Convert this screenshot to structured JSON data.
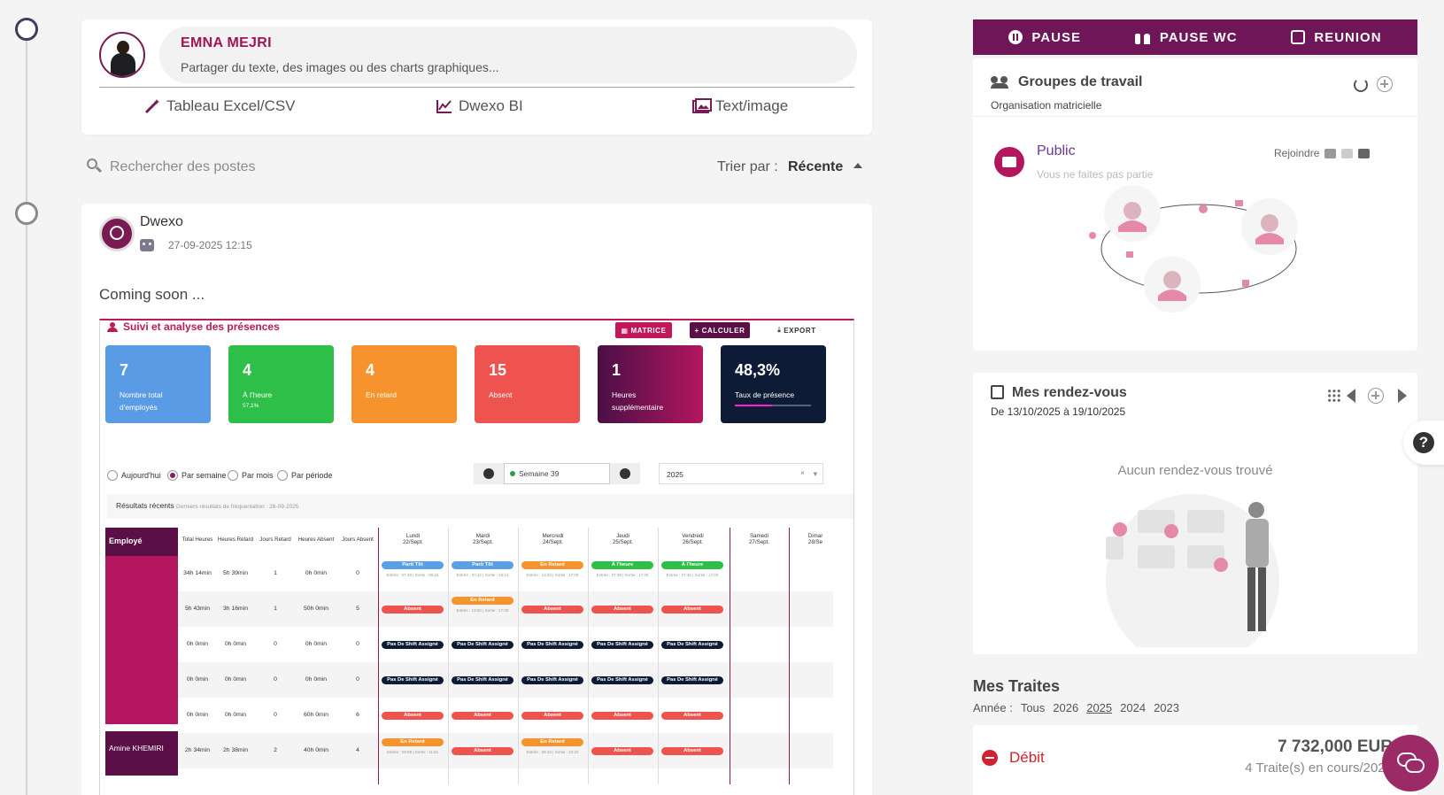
{
  "composer": {
    "user_name": "EMNA MEJRI",
    "prompt": "Partager du texte, des images ou des charts graphiques...",
    "actions": [
      "Tableau Excel/CSV",
      "Dwexo BI",
      "Text/image"
    ]
  },
  "search": {
    "placeholder": "Rechercher des postes"
  },
  "sort": {
    "label": "Trier par :",
    "value": "Récente"
  },
  "post": {
    "author": "Dwexo",
    "date": "27-09-2025 12:15",
    "body": "Coming soon ...",
    "dashboard": {
      "title": "Suivi et analyse des présences",
      "buttons": {
        "matrice": "MATRICE",
        "calculer": "CALCULER",
        "export": "EXPORT"
      },
      "stats": [
        {
          "value": "7",
          "label": "Nombre total d'employés",
          "color": "#5a9be6"
        },
        {
          "value": "4",
          "label": "À l'heure",
          "sub": "57,1%",
          "color": "#2dbf48"
        },
        {
          "value": "4",
          "label": "En retard",
          "color": "#f7932d"
        },
        {
          "value": "15",
          "label": "Absent",
          "color": "#ef5350"
        },
        {
          "value": "1",
          "label": "Heures supplémentaire",
          "color": "#5a0f46"
        },
        {
          "value": "48,3%",
          "label": "Taux de présence",
          "color": "#0d1b36"
        }
      ],
      "filters": [
        "Aujourd'hui",
        "Par semaine",
        "Par mois",
        "Par période"
      ],
      "selected_filter": "Par semaine",
      "week": "Semaine 39",
      "year": "2025",
      "results_label": "Résultats récents",
      "results_sub": "Derniers résultats de fréquentation : 26-09-2025",
      "columns": [
        "Employé",
        "Total Heures",
        "Heures Retard",
        "Jours Retard",
        "Heures Absent",
        "Jours Absent"
      ],
      "days": [
        {
          "name": "Lundi",
          "date": "22/Sept."
        },
        {
          "name": "Mardi",
          "date": "23/Sept."
        },
        {
          "name": "Mercredi",
          "date": "24/Sept."
        },
        {
          "name": "Jeudi",
          "date": "25/Sept."
        },
        {
          "name": "Vendredi",
          "date": "26/Sept."
        },
        {
          "name": "Samedi",
          "date": "27/Sept."
        },
        {
          "name": "Dimar",
          "date": "28/Se"
        }
      ],
      "rows": [
        {
          "name": "",
          "total": "34h 14min",
          "hr": "5h 39min",
          "jr": "1",
          "ha": "0h 0min",
          "ja": "0",
          "cells": [
            [
              "Parti Tôt",
              "blue",
              "Entrée : 07:48 | Sortie : 08:15"
            ],
            [
              "Parti Tôt",
              "blue",
              "Entrée : 07:42 | Sortie : 10:12"
            ],
            [
              "En Retard",
              "orange",
              "Entrée : 13:33 | Sortie : 17:00"
            ],
            [
              "À l'heure",
              "green",
              "Entrée : 07:39 | Sortie : 17:00"
            ],
            [
              "À l'heure",
              "green",
              "Entrée : 07:35 | Sortie : 17:00"
            ]
          ]
        },
        {
          "name": "",
          "total": "5h 43min",
          "hr": "3h 16min",
          "jr": "1",
          "ha": "50h 0min",
          "ja": "5",
          "cells": [
            [
              "Absent",
              "red",
              ""
            ],
            [
              "En Retard",
              "orange",
              "Entrée : 13:50 | Sortie : 17:00"
            ],
            [
              "Absent",
              "red",
              ""
            ],
            [
              "Absent",
              "red",
              ""
            ],
            [
              "Absent",
              "red",
              ""
            ]
          ]
        },
        {
          "name": "",
          "total": "0h 0min",
          "hr": "0h 0min",
          "jr": "0",
          "ha": "0h 0min",
          "ja": "0",
          "cells": [
            [
              "Pas De Shift Assigné",
              "navy",
              ""
            ],
            [
              "Pas De Shift Assigné",
              "navy",
              ""
            ],
            [
              "Pas De Shift Assigné",
              "navy",
              ""
            ],
            [
              "Pas De Shift Assigné",
              "navy",
              ""
            ],
            [
              "Pas De Shift Assigné",
              "navy",
              ""
            ]
          ]
        },
        {
          "name": "",
          "total": "0h 0min",
          "hr": "0h 0min",
          "jr": "0",
          "ha": "0h 0min",
          "ja": "0",
          "cells": [
            [
              "Pas De Shift Assigné",
              "navy",
              ""
            ],
            [
              "Pas De Shift Assigné",
              "navy",
              ""
            ],
            [
              "Pas De Shift Assigné",
              "navy",
              ""
            ],
            [
              "Pas De Shift Assigné",
              "navy",
              ""
            ],
            [
              "Pas De Shift Assigné",
              "navy",
              ""
            ]
          ]
        },
        {
          "name": "",
          "total": "0h 0min",
          "hr": "0h 0min",
          "jr": "0",
          "ha": "60h 0min",
          "ja": "6",
          "cells": [
            [
              "Absent",
              "red",
              ""
            ],
            [
              "Absent",
              "red",
              ""
            ],
            [
              "Absent",
              "red",
              ""
            ],
            [
              "Absent",
              "red",
              ""
            ],
            [
              "Absent",
              "red",
              ""
            ]
          ]
        },
        {
          "name": "Amine KHEMIRI",
          "total": "2h 34min",
          "hr": "2h 38min",
          "jr": "2",
          "ha": "40h 0min",
          "ja": "4",
          "cells": [
            [
              "En Retard",
              "orange",
              "Entrée : 09:55 | Sortie : 11:51"
            ],
            [
              "Absent",
              "red",
              ""
            ],
            [
              "En Retard",
              "orange",
              "Entrée : 09:43 | Sortie : 10:22"
            ],
            [
              "Absent",
              "red",
              ""
            ],
            [
              "Absent",
              "red",
              ""
            ]
          ]
        }
      ]
    }
  },
  "topbar": {
    "pause": "PAUSE",
    "pause_wc": "PAUSE WC",
    "reunion": "REUNION"
  },
  "groups": {
    "title": "Groupes de travail",
    "subtitle": "Organisation matricielle",
    "public": {
      "name": "Public",
      "sub": "Vous ne faites pas partie",
      "join": "Rejoindre"
    }
  },
  "rdv": {
    "title": "Mes rendez-vous",
    "range": "De 13/10/2025 à 19/10/2025",
    "empty": "Aucun rendez-vous trouvé"
  },
  "traites": {
    "title": "Mes Traites",
    "year_label": "Année :",
    "years": [
      "Tous",
      "2026",
      "2025",
      "2024",
      "2023"
    ],
    "selected_year": "2025",
    "debit": {
      "label": "Débit",
      "amount": "7 732,000 EUR",
      "count": "4 Traite(s) en cours/2025"
    }
  }
}
